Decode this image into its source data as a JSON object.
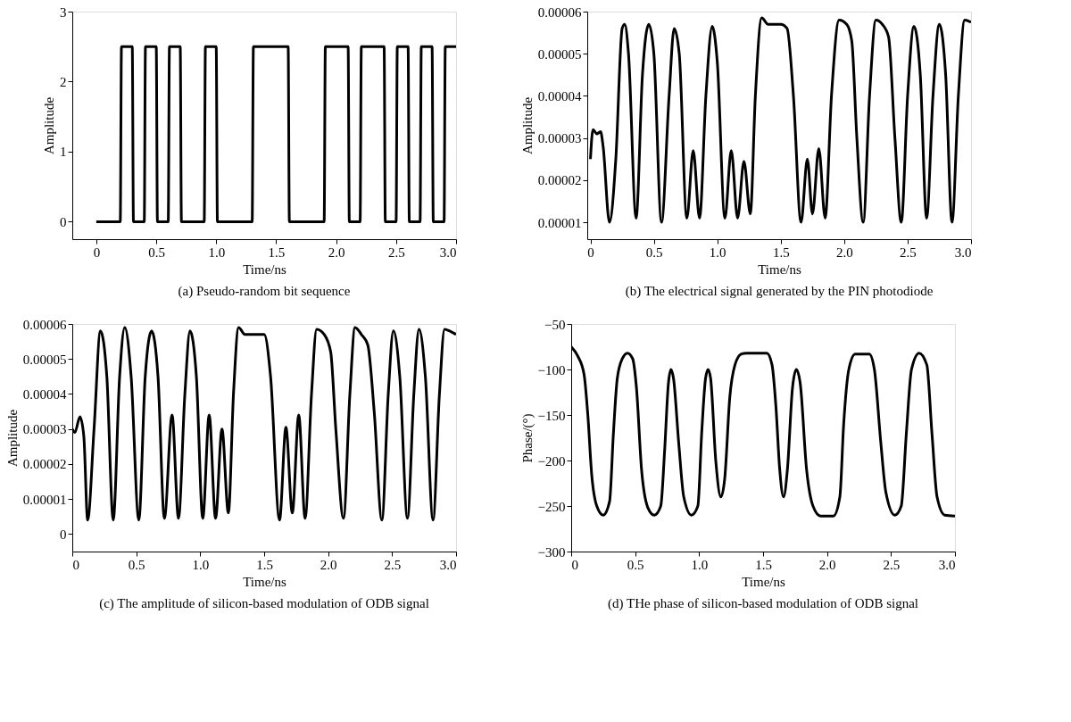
{
  "chart_data": [
    {
      "type": "line",
      "title": "(a) Pseudo-random bit sequence",
      "xlabel": "Time/ns",
      "ylabel": "Amplitude",
      "xlim": [
        -0.2,
        3.0
      ],
      "ylim": [
        -0.25,
        3
      ],
      "xticks": [
        0,
        0.5,
        {
          "value": 1,
          "label": "1.0"
        },
        1.5,
        {
          "value": 2,
          "label": "2.0"
        },
        2.5,
        {
          "value": 3,
          "label": "3.0"
        }
      ],
      "yticks": [
        0,
        1,
        2,
        3
      ],
      "marker": "none",
      "line_style": "solid",
      "series": [
        {
          "color": "#000000",
          "x": [
            0,
            0.2,
            0.21,
            0.3,
            0.31,
            0.4,
            0.41,
            0.5,
            0.51,
            0.6,
            0.61,
            0.7,
            0.71,
            0.9,
            0.91,
            1.0,
            1.01,
            1.3,
            1.31,
            1.6,
            1.61,
            1.9,
            1.91,
            2.1,
            2.11,
            2.2,
            2.21,
            2.4,
            2.41,
            2.5,
            2.51,
            2.6,
            2.61,
            2.7,
            2.71,
            2.8,
            2.81,
            2.9,
            2.91,
            3.0
          ],
          "values": [
            0,
            0,
            2.5,
            2.5,
            0,
            0,
            2.5,
            2.5,
            0,
            0,
            2.5,
            2.5,
            0,
            0,
            2.5,
            2.5,
            0,
            0,
            2.5,
            2.5,
            0,
            0,
            2.5,
            2.5,
            0,
            0,
            2.5,
            2.5,
            0,
            0,
            2.5,
            2.5,
            0,
            0,
            2.5,
            2.5,
            0,
            0,
            2.5,
            2.5
          ]
        }
      ]
    },
    {
      "type": "line",
      "title": "(b) The electrical signal generated by the PIN photodiode",
      "xlabel": "Time/ns",
      "ylabel": "Amplitude",
      "xlim": [
        -0.025,
        3.0
      ],
      "ylim": [
        6e-06,
        6e-05
      ],
      "xticks": [
        0,
        0.5,
        {
          "value": 1,
          "label": "1.0"
        },
        1.5,
        {
          "value": 2,
          "label": "2.0"
        },
        2.5,
        {
          "value": 3,
          "label": "3.0"
        }
      ],
      "yticks": [
        {
          "value": 1e-05,
          "label": "0.00001"
        },
        {
          "value": 2e-05,
          "label": "0.00002"
        },
        {
          "value": 3e-05,
          "label": "0.00003"
        },
        {
          "value": 4e-05,
          "label": "0.00004"
        },
        {
          "value": 5e-05,
          "label": "0.00005"
        },
        {
          "value": 6e-05,
          "label": "0.00006"
        }
      ],
      "marker": "none",
      "line_style": "solid",
      "series": [
        {
          "color": "#000000",
          "x": [
            0,
            0.02,
            0.05,
            0.08,
            0.1,
            0.15,
            0.2,
            0.25,
            0.27,
            0.3,
            0.36,
            0.41,
            0.46,
            0.5,
            0.56,
            0.62,
            0.66,
            0.7,
            0.76,
            0.81,
            0.86,
            0.91,
            0.96,
            1.0,
            1.06,
            1.11,
            1.16,
            1.21,
            1.26,
            1.3,
            1.35,
            1.4,
            1.5,
            1.55,
            1.6,
            1.66,
            1.71,
            1.75,
            1.8,
            1.85,
            1.9,
            1.96,
            2.02,
            2.06,
            2.1,
            2.15,
            2.2,
            2.25,
            2.3,
            2.35,
            2.4,
            2.45,
            2.5,
            2.55,
            2.6,
            2.65,
            2.7,
            2.75,
            2.8,
            2.85,
            2.9,
            2.95,
            3.0
          ],
          "values": [
            2.5e-05,
            3.2e-05,
            3.1e-05,
            3.15e-05,
            2.8e-05,
            1e-05,
            2.5e-05,
            5.6e-05,
            5.7e-05,
            5e-05,
            1.1e-05,
            4.5e-05,
            5.7e-05,
            5e-05,
            1e-05,
            4e-05,
            5.6e-05,
            5e-05,
            1.1e-05,
            2.7e-05,
            1.1e-05,
            4e-05,
            5.65e-05,
            4.8e-05,
            1.1e-05,
            2.7e-05,
            1.1e-05,
            2.45e-05,
            1.2e-05,
            4e-05,
            5.85e-05,
            5.7e-05,
            5.7e-05,
            5.6e-05,
            4e-05,
            1e-05,
            2.5e-05,
            1.2e-05,
            2.75e-05,
            1.1e-05,
            4e-05,
            5.8e-05,
            5.7e-05,
            5.3e-05,
            3e-05,
            1e-05,
            4e-05,
            5.8e-05,
            5.7e-05,
            5.4e-05,
            3e-05,
            1e-05,
            4e-05,
            5.65e-05,
            4.5e-05,
            1.1e-05,
            4e-05,
            5.7e-05,
            4.5e-05,
            1e-05,
            4e-05,
            5.8e-05,
            5.75e-05
          ]
        }
      ]
    },
    {
      "type": "line",
      "title": "(c) The amplitude of silicon-based modulation of ODB signal",
      "xlabel": "Time/ns",
      "ylabel": "Amplitude",
      "xlim": [
        0,
        3.0
      ],
      "ylim": [
        -5e-06,
        6e-05
      ],
      "xticks": [
        0,
        0.5,
        {
          "value": 1,
          "label": "1.0"
        },
        1.5,
        {
          "value": 2,
          "label": "2.0"
        },
        2.5,
        {
          "value": 3,
          "label": "3.0"
        }
      ],
      "yticks": [
        0,
        {
          "value": 1e-05,
          "label": "0.00001"
        },
        {
          "value": 2e-05,
          "label": "0.00002"
        },
        {
          "value": 3e-05,
          "label": "0.00003"
        },
        {
          "value": 4e-05,
          "label": "0.00004"
        },
        {
          "value": 5e-05,
          "label": "0.00005"
        },
        {
          "value": 6e-05,
          "label": "0.00006"
        }
      ],
      "marker": "none",
      "line_style": "solid",
      "series": [
        {
          "color": "#000000",
          "x": [
            0,
            0.02,
            0.06,
            0.09,
            0.12,
            0.17,
            0.22,
            0.27,
            0.32,
            0.37,
            0.41,
            0.46,
            0.52,
            0.57,
            0.62,
            0.67,
            0.72,
            0.78,
            0.83,
            0.88,
            0.92,
            0.97,
            1.02,
            1.07,
            1.12,
            1.17,
            1.22,
            1.26,
            1.3,
            1.35,
            1.5,
            1.55,
            1.62,
            1.67,
            1.72,
            1.77,
            1.82,
            1.87,
            1.91,
            1.97,
            2.02,
            2.06,
            2.12,
            2.17,
            2.21,
            2.26,
            2.31,
            2.36,
            2.42,
            2.47,
            2.51,
            2.56,
            2.62,
            2.67,
            2.71,
            2.76,
            2.82,
            2.87,
            2.91,
            2.95,
            3.0
          ],
          "values": [
            3e-05,
            2.9e-05,
            3.35e-05,
            2.8e-05,
            4e-06,
            3e-05,
            5.8e-05,
            4.5e-05,
            4e-06,
            4.5e-05,
            5.9e-05,
            4.5e-05,
            4e-06,
            4.5e-05,
            5.8e-05,
            4.5e-05,
            4.5e-06,
            3.4e-05,
            4.5e-06,
            4e-05,
            5.8e-05,
            4.5e-05,
            4.5e-06,
            3.4e-05,
            4.5e-06,
            3e-05,
            6e-06,
            4e-05,
            5.9e-05,
            5.7e-05,
            5.7e-05,
            4.5e-05,
            4e-06,
            3.05e-05,
            6e-06,
            3.4e-05,
            4.5e-06,
            4e-05,
            5.85e-05,
            5.7e-05,
            5.2e-05,
            3e-05,
            4.5e-06,
            4e-05,
            5.9e-05,
            5.7e-05,
            5.4e-05,
            3.5e-05,
            4e-06,
            4e-05,
            5.8e-05,
            4.5e-05,
            4.5e-06,
            4e-05,
            5.85e-05,
            4.5e-05,
            4e-06,
            4e-05,
            5.85e-05,
            5.8e-05,
            5.7e-05
          ]
        }
      ]
    },
    {
      "type": "line",
      "title": "(d) THe phase of silicon-based modulation of ODB signal",
      "xlabel": "Time/ns",
      "ylabel": "Phase/(°)",
      "xlim": [
        0,
        3.0
      ],
      "ylim": [
        -300,
        -50
      ],
      "xticks": [
        0,
        0.5,
        {
          "value": 1,
          "label": "1.0"
        },
        1.5,
        {
          "value": 2,
          "label": "2.0"
        },
        2.5,
        {
          "value": 3,
          "label": "3.0"
        }
      ],
      "yticks": [
        {
          "value": -50,
          "label": "−50"
        },
        {
          "value": -100,
          "label": "−100"
        },
        {
          "value": -150,
          "label": "−150"
        },
        {
          "value": -200,
          "label": "−200"
        },
        {
          "value": -250,
          "label": "−250"
        },
        {
          "value": -300,
          "label": "−300"
        }
      ],
      "marker": "none",
      "line_style": "solid",
      "series": [
        {
          "color": "#000000",
          "x": [
            0,
            0.05,
            0.1,
            0.13,
            0.16,
            0.2,
            0.25,
            0.3,
            0.33,
            0.36,
            0.4,
            0.44,
            0.48,
            0.51,
            0.55,
            0.6,
            0.65,
            0.7,
            0.73,
            0.76,
            0.78,
            0.8,
            0.84,
            0.88,
            0.94,
            0.99,
            1.02,
            1.05,
            1.07,
            1.09,
            1.13,
            1.17,
            1.2,
            1.24,
            1.28,
            1.33,
            1.37,
            1.53,
            1.57,
            1.6,
            1.63,
            1.66,
            1.69,
            1.73,
            1.76,
            1.79,
            1.84,
            1.89,
            1.95,
            2.05,
            2.1,
            2.13,
            2.17,
            2.22,
            2.33,
            2.37,
            2.42,
            2.46,
            2.53,
            2.58,
            2.62,
            2.66,
            2.72,
            2.78,
            2.82,
            2.86,
            2.92,
            3.0
          ],
          "values": [
            -75,
            -85,
            -105,
            -150,
            -215,
            -250,
            -260,
            -245,
            -170,
            -110,
            -88,
            -82,
            -88,
            -120,
            -210,
            -252,
            -260,
            -250,
            -190,
            -115,
            -100,
            -110,
            -180,
            -240,
            -260,
            -250,
            -170,
            -110,
            -100,
            -110,
            -200,
            -240,
            -220,
            -130,
            -95,
            -83,
            -82,
            -82,
            -95,
            -140,
            -210,
            -240,
            -210,
            -120,
            -100,
            -115,
            -210,
            -250,
            -261,
            -261,
            -240,
            -160,
            -100,
            -83,
            -83,
            -100,
            -180,
            -235,
            -260,
            -250,
            -170,
            -100,
            -82,
            -95,
            -170,
            -240,
            -260,
            -261
          ]
        }
      ]
    }
  ]
}
